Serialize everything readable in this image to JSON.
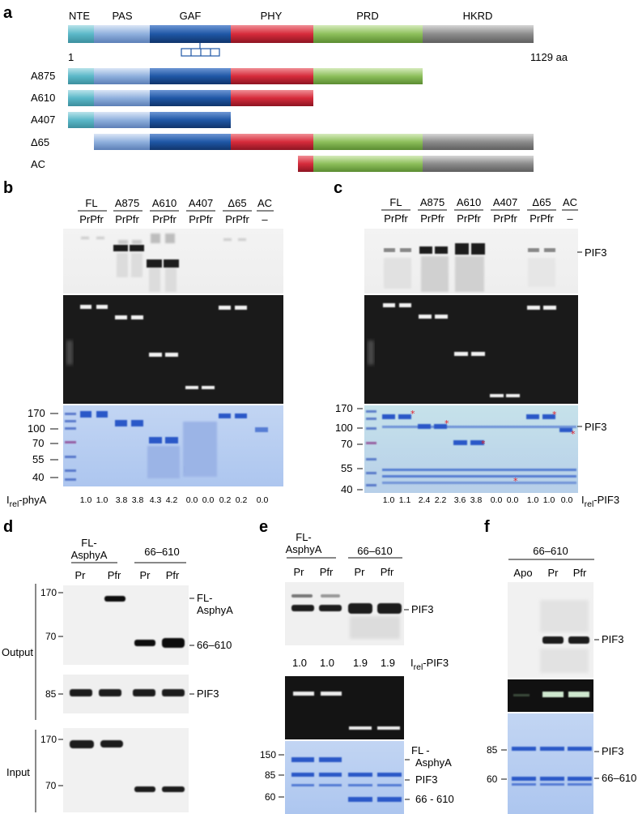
{
  "panels": {
    "a": {
      "letter": "a",
      "domains": [
        "NTE",
        "PAS",
        "GAF",
        "PHY",
        "PRD",
        "HKRD"
      ],
      "start_label": "1",
      "end_label": "1129 aa",
      "constructs": [
        "A875",
        "A610",
        "A407",
        "Δ65",
        "AC"
      ]
    },
    "b": {
      "letter": "b",
      "lanes": [
        "FL",
        "A875",
        "A610",
        "A407",
        "Δ65",
        "AC"
      ],
      "lane_sub": "PrPfr",
      "ac_sub": "–",
      "mw": [
        "170",
        "100",
        "70",
        "55",
        "40"
      ],
      "irel_label": "I",
      "irel_sub": "rel",
      "irel_suffix": "-phyA",
      "irel_values": [
        "1.0",
        "1.0",
        "3.8",
        "3.8",
        "4.3",
        "4.2",
        "0.0",
        "0.0",
        "0.2",
        "0.2",
        "0.0"
      ]
    },
    "c": {
      "letter": "c",
      "lanes": [
        "FL",
        "A875",
        "A610",
        "A407",
        "Δ65",
        "AC"
      ],
      "lane_sub": "PrPfr",
      "ac_sub": "–",
      "side_label_top": "PIF3",
      "side_label_bottom": "PIF3",
      "mw": [
        "170",
        "100",
        "70",
        "55",
        "40"
      ],
      "irel_label": "I",
      "irel_sub": "rel",
      "irel_suffix": "-PIF3",
      "irel_values": [
        "1.0",
        "1.1",
        "2.4",
        "2.2",
        "3.6",
        "3.8",
        "0.0",
        "0.0",
        "1.0",
        "1.0",
        "0.0"
      ]
    },
    "d": {
      "letter": "d",
      "group1_line1": "FL-",
      "group1_line2": "AsphyA",
      "group2": "66–610",
      "lanes": [
        "Pr",
        "Pfr",
        "Pr",
        "Pfr"
      ],
      "output_label": "Output",
      "input_label": "Input",
      "mw_output": [
        "170",
        "70"
      ],
      "mw_pif": "85",
      "mw_input": [
        "170",
        "70"
      ],
      "band_fl_line1": "FL-",
      "band_fl_line2": "AsphyA",
      "band_66": "66–610",
      "band_pif": "PIF3"
    },
    "e": {
      "letter": "e",
      "group1_line1": "FL-",
      "group1_line2": "AsphyA",
      "group2": "66–610",
      "lanes": [
        "Pr",
        "Pfr",
        "Pr",
        "Pfr"
      ],
      "band_pif": "PIF3",
      "irel_values": [
        "1.0",
        "1.0",
        "1.9",
        "1.9"
      ],
      "irel_label": "I",
      "irel_sub": "rel",
      "irel_suffix": "-PIF3",
      "mw": [
        "150",
        "85",
        "60"
      ],
      "side_fl_line1": "FL  -",
      "side_fl_line2": "AsphyA",
      "side_pif": "PIF3",
      "side_66": "66 - 610"
    },
    "f": {
      "letter": "f",
      "group": "66–610",
      "lanes": [
        "Apo",
        "Pr",
        "Pfr"
      ],
      "band_pif": "PIF3",
      "mw": [
        "85",
        "60"
      ],
      "side_pif": "PIF3",
      "side_66": "66–610"
    }
  },
  "colors": {
    "nte": "#5bb8c8",
    "pas": "#8fb0dd",
    "gaf": "#1f57a6",
    "phy": "#d62b3b",
    "prd": "#8dbf5b",
    "hkrd": "#8c8c8c",
    "gel_bg": "#1a1a1a",
    "coomassie": "#b9cdf0"
  }
}
